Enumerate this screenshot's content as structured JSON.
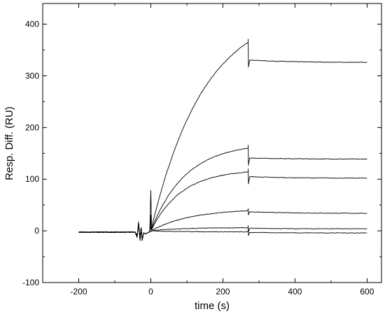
{
  "chart_data": {
    "type": "line",
    "title": "",
    "xlabel": "time (s)",
    "ylabel": "Resp. Diff. (RU)",
    "xlim": [
      -300,
      640
    ],
    "ylim": [
      -100,
      440
    ],
    "xticks": [
      -200,
      0,
      200,
      400,
      600
    ],
    "yticks": [
      -100,
      0,
      100,
      200,
      300,
      400
    ],
    "xtick_labels": [
      "-200",
      "0",
      "200",
      "400",
      "600"
    ],
    "ytick_labels": [
      "-100",
      "0",
      "100",
      "200",
      "300",
      "400"
    ],
    "grid": false,
    "legend": "none",
    "injection_start": 0,
    "injection_end": 270,
    "series": [
      {
        "assoc_end": 365,
        "dissoc_start": 331,
        "dissoc_end": 326,
        "k": 0.0068
      },
      {
        "assoc_end": 160,
        "dissoc_start": 141,
        "dissoc_end": 139,
        "k": 0.0105
      },
      {
        "assoc_end": 114,
        "dissoc_start": 105,
        "dissoc_end": 102,
        "k": 0.0118
      },
      {
        "assoc_end": 39,
        "dissoc_start": 37,
        "dissoc_end": 34,
        "k": 0.009
      },
      {
        "assoc_end": 6,
        "dissoc_start": 5,
        "dissoc_end": 4,
        "k": 0.012
      },
      {
        "assoc_end": -2,
        "dissoc_start": -3,
        "dissoc_end": -4,
        "k": 0.01
      }
    ],
    "line_color": "#000000"
  }
}
